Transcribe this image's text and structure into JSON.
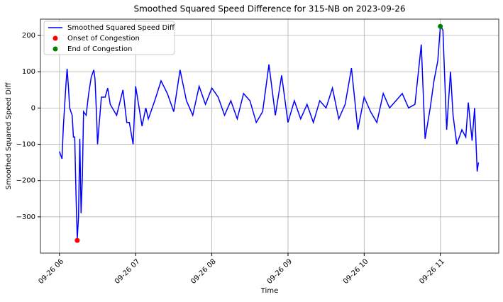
{
  "chart_data": {
    "type": "line",
    "title": "Smoothed Squared Speed Difference for 315-NB on 2023-09-26",
    "x_label": "Time",
    "y_label": "Smoothed Squared Speed Diff",
    "xlim": [
      "09-26 05:45",
      "09-26 11:46"
    ],
    "xticks": [
      {
        "value": "09-26 06:00",
        "label": "09-26 06"
      },
      {
        "value": "09-26 07:00",
        "label": "09-26 07"
      },
      {
        "value": "09-26 08:00",
        "label": "09-26 08"
      },
      {
        "value": "09-26 09:00",
        "label": "09-26 09"
      },
      {
        "value": "09-26 10:00",
        "label": "09-26 10"
      },
      {
        "value": "09-26 11:00",
        "label": "09-26 11"
      }
    ],
    "ylim": [
      -400,
      245
    ],
    "yticks": [
      {
        "value": -300,
        "label": "−300"
      },
      {
        "value": -200,
        "label": "−200"
      },
      {
        "value": -100,
        "label": "−100"
      },
      0,
      100,
      200
    ],
    "grid": true,
    "legend": "upper left",
    "series": [
      {
        "name": "Smoothed Squared Speed Diff",
        "type": "line",
        "color": "#0000ff",
        "x": [
          "09-26 06:00",
          "09-26 06:02",
          "09-26 06:03",
          "09-26 06:05",
          "09-26 06:06",
          "09-26 06:07",
          "09-26 06:08",
          "09-26 06:10",
          "09-26 06:11",
          "09-26 06:12",
          "09-26 06:13",
          "09-26 06:14",
          "09-26 06:15",
          "09-26 06:16",
          "09-26 06:17",
          "09-26 06:18",
          "09-26 06:19",
          "09-26 06:21",
          "09-26 06:23",
          "09-26 06:25",
          "09-26 06:27",
          "09-26 06:28",
          "09-26 06:29",
          "09-26 06:30",
          "09-26 06:33",
          "09-26 06:36",
          "09-26 06:38",
          "09-26 06:40",
          "09-26 06:45",
          "09-26 06:50",
          "09-26 06:53",
          "09-26 06:55",
          "09-26 06:58",
          "09-26 07:00",
          "09-26 07:05",
          "09-26 07:08",
          "09-26 07:10",
          "09-26 07:15",
          "09-26 07:20",
          "09-26 07:25",
          "09-26 07:30",
          "09-26 07:35",
          "09-26 07:40",
          "09-26 07:45",
          "09-26 07:50",
          "09-26 07:55",
          "09-26 08:00",
          "09-26 08:05",
          "09-26 08:10",
          "09-26 08:15",
          "09-26 08:20",
          "09-26 08:25",
          "09-26 08:30",
          "09-26 08:35",
          "09-26 08:40",
          "09-26 08:45",
          "09-26 08:50",
          "09-26 08:55",
          "09-26 09:00",
          "09-26 09:05",
          "09-26 09:10",
          "09-26 09:15",
          "09-26 09:20",
          "09-26 09:25",
          "09-26 09:30",
          "09-26 09:35",
          "09-26 09:40",
          "09-26 09:45",
          "09-26 09:50",
          "09-26 09:55",
          "09-26 10:00",
          "09-26 10:05",
          "09-26 10:10",
          "09-26 10:15",
          "09-26 10:20",
          "09-26 10:25",
          "09-26 10:30",
          "09-26 10:35",
          "09-26 10:40",
          "09-26 10:45",
          "09-26 10:48",
          "09-26 10:52",
          "09-26 10:55",
          "09-26 10:58",
          "09-26 11:00",
          "09-26 11:02",
          "09-26 11:05",
          "09-26 11:08",
          "09-26 11:10",
          "09-26 11:13",
          "09-26 11:17",
          "09-26 11:20",
          "09-26 11:22",
          "09-26 11:25",
          "09-26 11:27",
          "09-26 11:29",
          "09-26 11:30"
        ],
        "values": [
          -120,
          -140,
          -55,
          60,
          108,
          60,
          0,
          -20,
          -80,
          -80,
          -235,
          -360,
          -300,
          -85,
          -290,
          -190,
          -10,
          -20,
          40,
          85,
          105,
          80,
          0,
          -100,
          30,
          30,
          55,
          10,
          -20,
          50,
          -40,
          -40,
          -100,
          60,
          -50,
          0,
          -30,
          20,
          75,
          40,
          -10,
          105,
          20,
          -20,
          60,
          10,
          55,
          30,
          -20,
          20,
          -30,
          40,
          20,
          -40,
          -10,
          120,
          -20,
          90,
          -40,
          20,
          -30,
          10,
          -40,
          20,
          0,
          55,
          -30,
          10,
          110,
          -60,
          30,
          -10,
          -40,
          40,
          0,
          20,
          40,
          0,
          10,
          175,
          -85,
          0,
          75,
          130,
          225,
          215,
          -60,
          100,
          -20,
          -100,
          -60,
          -80,
          15,
          -90,
          0,
          -175,
          -150
        ]
      },
      {
        "name": "Onset of Congestion",
        "type": "scatter",
        "color": "#ff0000",
        "x": [
          "09-26 06:14"
        ],
        "values": [
          -365
        ]
      },
      {
        "name": "End of Congestion",
        "type": "scatter",
        "color": "#008000",
        "x": [
          "09-26 11:00"
        ],
        "values": [
          225
        ]
      }
    ]
  }
}
